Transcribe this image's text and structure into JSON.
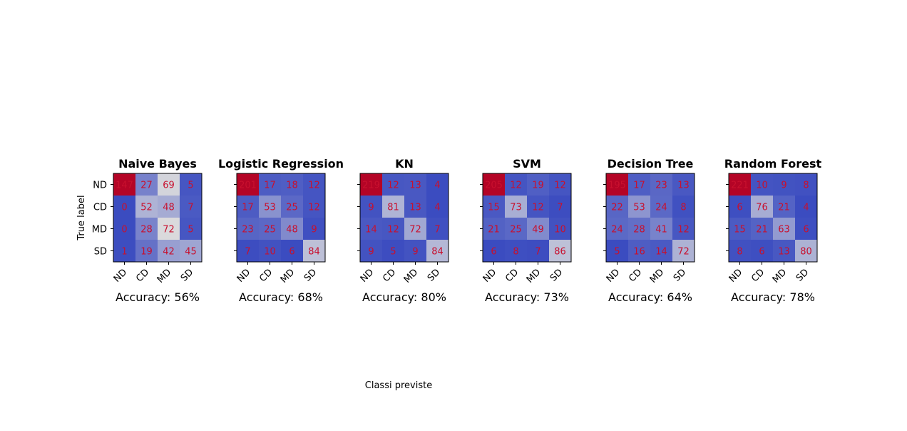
{
  "figure": {
    "ylabel": "True label",
    "xlabel": "Classi previste"
  },
  "colors": {
    "cmap_low": "#3b4cc0",
    "cmap_mid": "#dddddd",
    "cmap_high": "#b40426",
    "cell_text": "#c8102e"
  },
  "chart_data": [
    {
      "type": "heatmap",
      "title": "Naive Bayes",
      "accuracy_label": "Accuracy: 56%",
      "rows": [
        "ND",
        "CD",
        "MD",
        "SD"
      ],
      "cols": [
        "ND",
        "CD",
        "MD",
        "SD"
      ],
      "values": [
        [
          147,
          27,
          69,
          5
        ],
        [
          0,
          52,
          48,
          7
        ],
        [
          0,
          28,
          72,
          5
        ],
        [
          1,
          19,
          42,
          45
        ]
      ]
    },
    {
      "type": "heatmap",
      "title": "Logistic Regression",
      "accuracy_label": "Accuracy: 68%",
      "rows": [
        "ND",
        "CD",
        "MD",
        "SD"
      ],
      "cols": [
        "ND",
        "CD",
        "MD",
        "SD"
      ],
      "values": [
        [
          201,
          17,
          18,
          12
        ],
        [
          17,
          53,
          25,
          12
        ],
        [
          23,
          25,
          48,
          9
        ],
        [
          7,
          10,
          6,
          84
        ]
      ]
    },
    {
      "type": "heatmap",
      "title": "KN",
      "accuracy_label": "Accuracy: 80%",
      "rows": [
        "ND",
        "CD",
        "MD",
        "SD"
      ],
      "cols": [
        "ND",
        "CD",
        "MD",
        "SD"
      ],
      "values": [
        [
          219,
          12,
          13,
          4
        ],
        [
          9,
          81,
          13,
          4
        ],
        [
          14,
          12,
          72,
          7
        ],
        [
          9,
          5,
          9,
          84
        ]
      ]
    },
    {
      "type": "heatmap",
      "title": "SVM",
      "accuracy_label": "Accuracy: 73%",
      "rows": [
        "ND",
        "CD",
        "MD",
        "SD"
      ],
      "cols": [
        "ND",
        "CD",
        "MD",
        "SD"
      ],
      "values": [
        [
          205,
          12,
          19,
          12
        ],
        [
          15,
          73,
          12,
          7
        ],
        [
          21,
          25,
          49,
          10
        ],
        [
          6,
          8,
          7,
          86
        ]
      ]
    },
    {
      "type": "heatmap",
      "title": "Decision Tree",
      "accuracy_label": "Accuracy: 64%",
      "rows": [
        "ND",
        "CD",
        "MD",
        "SD"
      ],
      "cols": [
        "ND",
        "CD",
        "MD",
        "SD"
      ],
      "values": [
        [
          195,
          17,
          23,
          13
        ],
        [
          22,
          53,
          24,
          8
        ],
        [
          24,
          28,
          41,
          12
        ],
        [
          5,
          16,
          14,
          72
        ]
      ]
    },
    {
      "type": "heatmap",
      "title": "Random Forest",
      "accuracy_label": "Accuracy: 78%",
      "rows": [
        "ND",
        "CD",
        "MD",
        "SD"
      ],
      "cols": [
        "ND",
        "CD",
        "MD",
        "SD"
      ],
      "values": [
        [
          221,
          10,
          9,
          8
        ],
        [
          6,
          76,
          21,
          4
        ],
        [
          15,
          21,
          63,
          6
        ],
        [
          8,
          6,
          13,
          80
        ]
      ]
    }
  ]
}
